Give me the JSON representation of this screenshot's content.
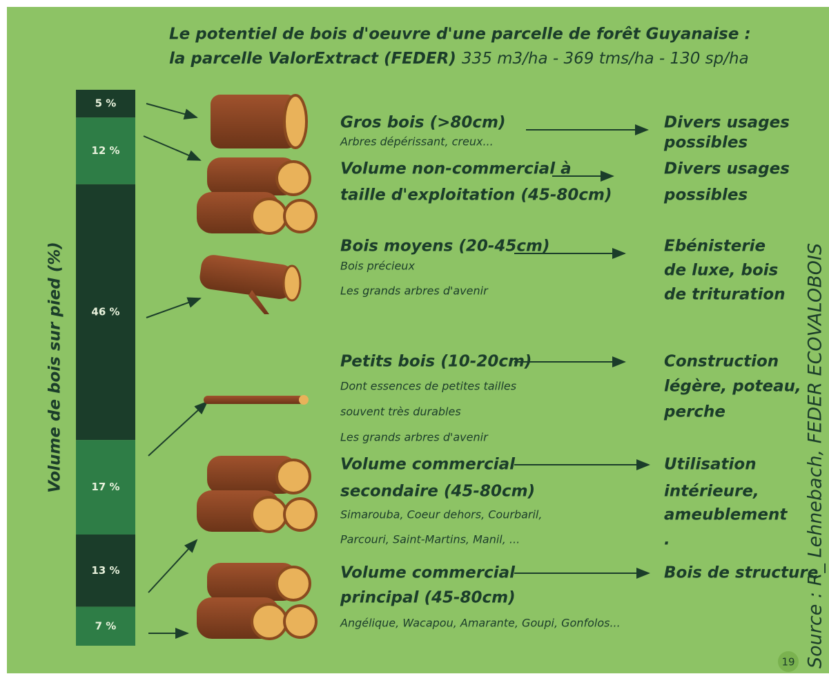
{
  "title": {
    "line1": "Le potentiel de bois d'oeuvre d'une parcelle de forêt Guyanaise :",
    "line2_bold": "la parcelle ValorExtract (FEDER)",
    "line2_rest": "335 m3/ha - 369 tms/ha - 130 sp/ha"
  },
  "axis_label": "Volume de bois sur pied (%)",
  "segments": [
    {
      "value": 5,
      "label": "5 %"
    },
    {
      "value": 12,
      "label": "12 %"
    },
    {
      "value": 46,
      "label": "46 %"
    },
    {
      "value": 17,
      "label": "17 %"
    },
    {
      "value": 13,
      "label": "13 %"
    },
    {
      "value": 7,
      "label": "7 %"
    }
  ],
  "rows": [
    {
      "title": [
        "Gros bois (>80cm)"
      ],
      "notes": [
        "Arbres dépérissant, creux..."
      ],
      "use": [
        "Divers usages",
        "possibles"
      ]
    },
    {
      "title": [
        "Volume non-commercial à",
        "taille d'exploitation (45-80cm)"
      ],
      "notes": [],
      "use": [
        "Divers usages",
        "possibles"
      ]
    },
    {
      "title": [
        "Bois moyens (20-45cm)"
      ],
      "notes": [
        "Bois précieux",
        "Les grands arbres d'avenir"
      ],
      "use": [
        "Ebénisterie",
        "de luxe, bois",
        "de trituration"
      ]
    },
    {
      "title": [
        "Petits bois (10-20cm)"
      ],
      "notes": [
        "Dont essences de petites tailles",
        "souvent très durables",
        "Les grands arbres d'avenir"
      ],
      "use": [
        "Construction",
        "légère, poteau,",
        "perche"
      ]
    },
    {
      "title": [
        "Volume commercial",
        "secondaire (45-80cm)"
      ],
      "notes": [
        "Simarouba, Coeur dehors, Courbaril,",
        "Parcouri, Saint-Martins, Manil, ..."
      ],
      "use": [
        "Utilisation",
        "intérieure,",
        "ameublement",
        "."
      ]
    },
    {
      "title": [
        "Volume commercial",
        "principal (45-80cm)"
      ],
      "notes": [
        "Angélique, Wacapou, Amarante, Goupi, Gonfolos..."
      ],
      "use": [
        "Bois de structure"
      ]
    }
  ],
  "source": "Source : R_ Lehnebach, FEDER ECOVALOBOIS",
  "page_number": "19"
}
